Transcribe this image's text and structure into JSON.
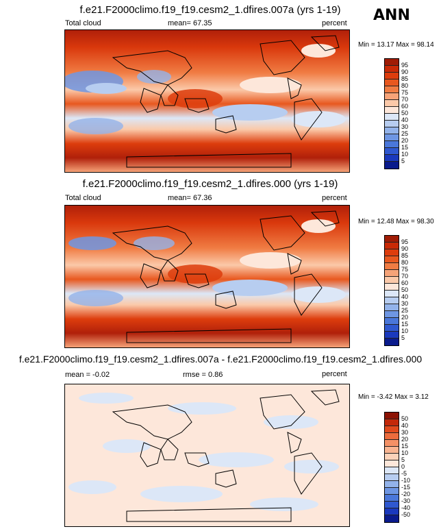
{
  "season": "ANN",
  "panels": [
    {
      "title": "f.e21.F2000climo.f19_f19.cesm2_1.dfires.007a (yrs 1-19)",
      "left_label": "Total cloud",
      "mid_label": "mean=  67.35",
      "right_label": "percent",
      "minmax": "Min =  13.17 Max =  98.14",
      "colorbar": {
        "labels": [
          "95",
          "90",
          "85",
          "80",
          "75",
          "70",
          "60",
          "50",
          "40",
          "30",
          "25",
          "20",
          "15",
          "10",
          "5"
        ],
        "colors": [
          "#a01c05",
          "#c92a06",
          "#dd3d0d",
          "#e8581f",
          "#f07c43",
          "#f6a378",
          "#fbc9a9",
          "#fde7da",
          "#dce7f7",
          "#b7cdf0",
          "#93b3ea",
          "#6e96e3",
          "#4a77da",
          "#2f58d0",
          "#1a39bd",
          "#0a1b8c"
        ]
      }
    },
    {
      "title": "f.e21.F2000climo.f19_f19.cesm2_1.dfires.000 (yrs 1-19)",
      "left_label": "Total cloud",
      "mid_label": "mean=  67.36",
      "right_label": "percent",
      "minmax": "Min =  12.48 Max =  98.30",
      "colorbar": {
        "labels": [
          "95",
          "90",
          "85",
          "80",
          "75",
          "70",
          "60",
          "50",
          "40",
          "30",
          "25",
          "20",
          "15",
          "10",
          "5"
        ],
        "colors": [
          "#a01c05",
          "#c92a06",
          "#dd3d0d",
          "#e8581f",
          "#f07c43",
          "#f6a378",
          "#fbc9a9",
          "#fde7da",
          "#dce7f7",
          "#b7cdf0",
          "#93b3ea",
          "#6e96e3",
          "#4a77da",
          "#2f58d0",
          "#1a39bd",
          "#0a1b8c"
        ]
      }
    },
    {
      "title": "f.e21.F2000climo.f19_f19.cesm2_1.dfires.007a - f.e21.F2000climo.f19_f19.cesm2_1.dfires.000",
      "left_label": "mean =  -0.02",
      "mid_label": "rmse =  0.86",
      "right_label": "percent",
      "minmax": "Min =  -3.42 Max =   3.12",
      "colorbar": {
        "labels": [
          "50",
          "40",
          "30",
          "20",
          "15",
          "10",
          "5",
          "0",
          "-5",
          "-10",
          "-15",
          "-20",
          "-30",
          "-40",
          "-50"
        ],
        "colors": [
          "#8c1203",
          "#c3290a",
          "#e04a1d",
          "#ec6c3d",
          "#f49166",
          "#f9b592",
          "#fcd3ba",
          "#fde7da",
          "#dce7f7",
          "#b7cdf0",
          "#93b3ea",
          "#6e96e3",
          "#4a77da",
          "#2f58d0",
          "#1a39bd",
          "#0a1b8c"
        ]
      }
    }
  ]
}
